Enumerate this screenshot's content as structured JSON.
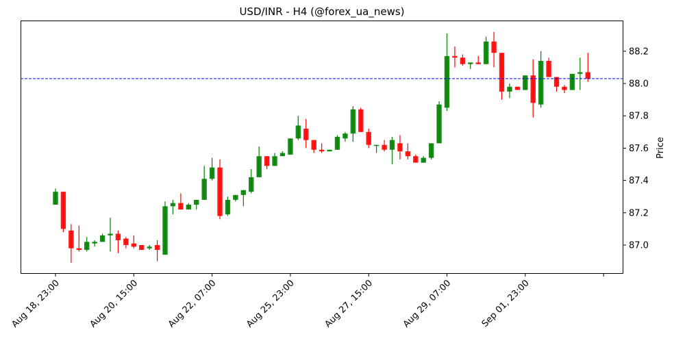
{
  "title": "USD/INR - H4 (@forex_ua_news)",
  "colors": {
    "up": "#008000",
    "down": "#ff0000",
    "reference_line": "#0000ff",
    "axis": "#000000"
  },
  "chart_data": {
    "type": "candlestick",
    "title": "USD/INR - H4 (@forex_ua_news)",
    "xlabel": "",
    "ylabel": "Price",
    "ylim": [
      86.83,
      88.39
    ],
    "yticks": [
      87.0,
      87.2,
      87.4,
      87.6,
      87.8,
      88.0,
      88.2
    ],
    "ytick_labels": [
      "87.0",
      "87.2",
      "87.4",
      "87.6",
      "87.8",
      "88.0",
      "88.2"
    ],
    "xtick_indices": [
      0,
      10,
      20,
      30,
      40,
      50,
      60,
      70
    ],
    "xtick_labels": [
      "Aug 18, 23:00",
      "Aug 20, 15:00",
      "Aug 22, 07:00",
      "Aug 25, 23:00",
      "Aug 27, 15:00",
      "Aug 29, 07:00",
      "Sep 01, 23:00",
      ""
    ],
    "grid": false,
    "legend": null,
    "reference_line": {
      "value": 88.03,
      "style": "dashed",
      "color": "#0000ff"
    },
    "candles": [
      {
        "o": 87.25,
        "h": 87.35,
        "l": 87.25,
        "c": 87.33
      },
      {
        "o": 87.33,
        "h": 87.33,
        "l": 87.08,
        "c": 87.1
      },
      {
        "o": 87.09,
        "h": 87.13,
        "l": 86.89,
        "c": 86.98
      },
      {
        "o": 86.98,
        "h": 87.12,
        "l": 86.96,
        "c": 86.97
      },
      {
        "o": 86.97,
        "h": 87.05,
        "l": 86.96,
        "c": 87.02
      },
      {
        "o": 87.01,
        "h": 87.03,
        "l": 86.99,
        "c": 87.02
      },
      {
        "o": 87.02,
        "h": 87.07,
        "l": 87.02,
        "c": 87.06
      },
      {
        "o": 87.06,
        "h": 87.17,
        "l": 86.96,
        "c": 87.07
      },
      {
        "o": 87.07,
        "h": 87.09,
        "l": 86.95,
        "c": 87.03
      },
      {
        "o": 87.04,
        "h": 87.05,
        "l": 86.98,
        "c": 87.0
      },
      {
        "o": 87.01,
        "h": 87.06,
        "l": 86.98,
        "c": 86.99
      },
      {
        "o": 87.0,
        "h": 87.0,
        "l": 86.97,
        "c": 86.97
      },
      {
        "o": 86.98,
        "h": 87.0,
        "l": 86.97,
        "c": 86.99
      },
      {
        "o": 87.0,
        "h": 87.03,
        "l": 86.9,
        "c": 86.97
      },
      {
        "o": 86.94,
        "h": 87.27,
        "l": 86.94,
        "c": 87.24
      },
      {
        "o": 87.24,
        "h": 87.28,
        "l": 87.19,
        "c": 87.26
      },
      {
        "o": 87.26,
        "h": 87.32,
        "l": 87.22,
        "c": 87.22
      },
      {
        "o": 87.22,
        "h": 87.26,
        "l": 87.22,
        "c": 87.25
      },
      {
        "o": 87.25,
        "h": 87.28,
        "l": 87.22,
        "c": 87.28
      },
      {
        "o": 87.28,
        "h": 87.49,
        "l": 87.28,
        "c": 87.41
      },
      {
        "o": 87.41,
        "h": 87.54,
        "l": 87.4,
        "c": 87.48
      },
      {
        "o": 87.48,
        "h": 87.53,
        "l": 87.16,
        "c": 87.18
      },
      {
        "o": 87.19,
        "h": 87.3,
        "l": 87.18,
        "c": 87.28
      },
      {
        "o": 87.28,
        "h": 87.31,
        "l": 87.27,
        "c": 87.31
      },
      {
        "o": 87.31,
        "h": 87.34,
        "l": 87.24,
        "c": 87.34
      },
      {
        "o": 87.33,
        "h": 87.47,
        "l": 87.32,
        "c": 87.42
      },
      {
        "o": 87.42,
        "h": 87.61,
        "l": 87.42,
        "c": 87.55
      },
      {
        "o": 87.55,
        "h": 87.55,
        "l": 87.47,
        "c": 87.49
      },
      {
        "o": 87.49,
        "h": 87.57,
        "l": 87.49,
        "c": 87.55
      },
      {
        "o": 87.55,
        "h": 87.58,
        "l": 87.55,
        "c": 87.57
      },
      {
        "o": 87.56,
        "h": 87.66,
        "l": 87.56,
        "c": 87.66
      },
      {
        "o": 87.66,
        "h": 87.8,
        "l": 87.65,
        "c": 87.74
      },
      {
        "o": 87.72,
        "h": 87.78,
        "l": 87.6,
        "c": 87.65
      },
      {
        "o": 87.65,
        "h": 87.65,
        "l": 87.57,
        "c": 87.59
      },
      {
        "o": 87.59,
        "h": 87.63,
        "l": 87.57,
        "c": 87.58
      },
      {
        "o": 87.58,
        "h": 87.59,
        "l": 87.58,
        "c": 87.59
      },
      {
        "o": 87.59,
        "h": 87.68,
        "l": 87.59,
        "c": 87.67
      },
      {
        "o": 87.66,
        "h": 87.7,
        "l": 87.64,
        "c": 87.69
      },
      {
        "o": 87.69,
        "h": 87.86,
        "l": 87.64,
        "c": 87.84
      },
      {
        "o": 87.84,
        "h": 87.85,
        "l": 87.7,
        "c": 87.7
      },
      {
        "o": 87.7,
        "h": 87.72,
        "l": 87.6,
        "c": 87.62
      },
      {
        "o": 87.62,
        "h": 87.62,
        "l": 87.57,
        "c": 87.62
      },
      {
        "o": 87.62,
        "h": 87.65,
        "l": 87.58,
        "c": 87.59
      },
      {
        "o": 87.59,
        "h": 87.67,
        "l": 87.5,
        "c": 87.65
      },
      {
        "o": 87.63,
        "h": 87.68,
        "l": 87.53,
        "c": 87.58
      },
      {
        "o": 87.58,
        "h": 87.63,
        "l": 87.53,
        "c": 87.55
      },
      {
        "o": 87.55,
        "h": 87.56,
        "l": 87.51,
        "c": 87.51
      },
      {
        "o": 87.51,
        "h": 87.55,
        "l": 87.51,
        "c": 87.54
      },
      {
        "o": 87.54,
        "h": 87.63,
        "l": 87.53,
        "c": 87.63
      },
      {
        "o": 87.63,
        "h": 87.89,
        "l": 87.63,
        "c": 87.87
      },
      {
        "o": 87.85,
        "h": 88.31,
        "l": 87.83,
        "c": 88.17
      },
      {
        "o": 88.17,
        "h": 88.23,
        "l": 88.1,
        "c": 88.16
      },
      {
        "o": 88.16,
        "h": 88.18,
        "l": 88.11,
        "c": 88.12
      },
      {
        "o": 88.12,
        "h": 88.13,
        "l": 88.09,
        "c": 88.13
      },
      {
        "o": 88.13,
        "h": 88.17,
        "l": 88.12,
        "c": 88.12
      },
      {
        "o": 88.12,
        "h": 88.29,
        "l": 88.12,
        "c": 88.26
      },
      {
        "o": 88.26,
        "h": 88.32,
        "l": 88.1,
        "c": 88.19
      },
      {
        "o": 88.19,
        "h": 88.19,
        "l": 87.9,
        "c": 87.95
      },
      {
        "o": 87.95,
        "h": 88.0,
        "l": 87.91,
        "c": 87.98
      },
      {
        "o": 87.98,
        "h": 87.98,
        "l": 87.96,
        "c": 87.96
      },
      {
        "o": 87.96,
        "h": 88.05,
        "l": 87.96,
        "c": 88.05
      },
      {
        "o": 88.05,
        "h": 88.15,
        "l": 87.79,
        "c": 87.88
      },
      {
        "o": 87.87,
        "h": 88.2,
        "l": 87.85,
        "c": 88.14
      },
      {
        "o": 88.14,
        "h": 88.16,
        "l": 88.04,
        "c": 88.04
      },
      {
        "o": 88.04,
        "h": 88.04,
        "l": 87.95,
        "c": 87.98
      },
      {
        "o": 87.98,
        "h": 87.99,
        "l": 87.94,
        "c": 87.96
      },
      {
        "o": 87.96,
        "h": 88.06,
        "l": 87.96,
        "c": 88.06
      },
      {
        "o": 88.06,
        "h": 88.16,
        "l": 87.96,
        "c": 88.07
      },
      {
        "o": 88.07,
        "h": 88.19,
        "l": 88.01,
        "c": 88.03
      }
    ]
  }
}
